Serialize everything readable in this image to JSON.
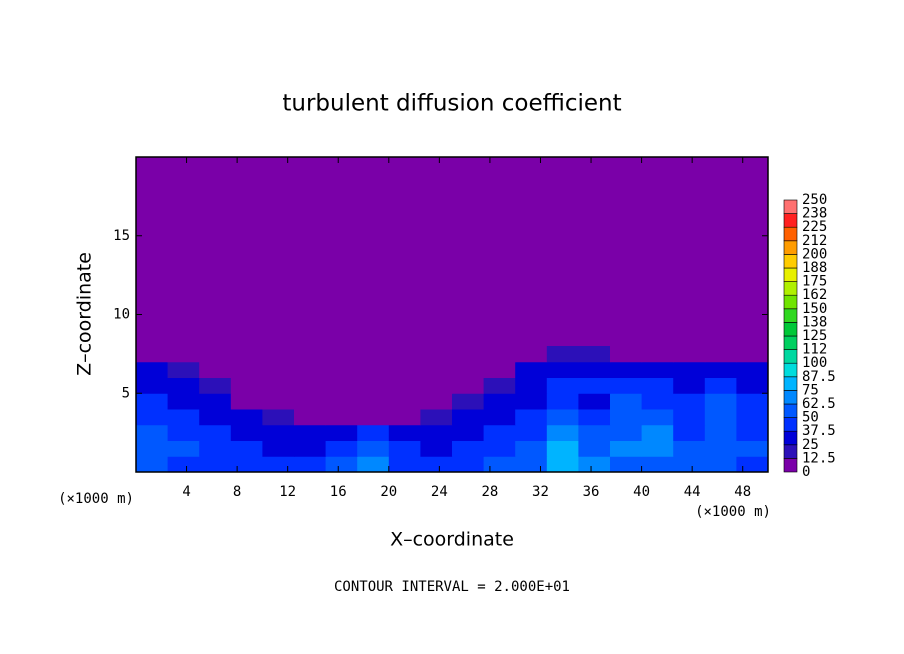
{
  "chart_data": {
    "type": "heatmap",
    "title": "turbulent diffusion coefficient",
    "xlabel": "X–coordinate",
    "ylabel": "Z–coordinate",
    "x_units": [
      "(×1000 m)",
      "(×1000 m)"
    ],
    "footer": "CONTOUR INTERVAL = 2.000E+01",
    "xlim": [
      0,
      50
    ],
    "ylim": [
      0,
      20
    ],
    "xticks": [
      4,
      8,
      12,
      16,
      20,
      24,
      28,
      32,
      36,
      40,
      44,
      48
    ],
    "yticks": [
      5,
      10,
      15
    ],
    "x": [
      1.25,
      3.75,
      6.25,
      8.75,
      11.25,
      13.75,
      16.25,
      18.75,
      21.25,
      23.75,
      26.25,
      28.75,
      31.25,
      33.75,
      36.25,
      38.75,
      41.25,
      43.75,
      46.25,
      48.75
    ],
    "y": [
      0.5,
      1.5,
      2.5,
      3.5,
      4.5,
      5.5,
      6.5,
      7.5
    ],
    "values": [
      [
        50,
        45,
        40,
        40,
        40,
        45,
        50,
        70,
        45,
        40,
        45,
        50,
        55,
        80,
        70,
        60,
        55,
        50,
        50,
        45
      ],
      [
        55,
        50,
        45,
        40,
        35,
        35,
        45,
        60,
        40,
        35,
        40,
        45,
        50,
        75,
        60,
        70,
        65,
        50,
        55,
        50
      ],
      [
        50,
        45,
        40,
        35,
        30,
        25,
        30,
        40,
        35,
        30,
        35,
        40,
        40,
        70,
        50,
        60,
        70,
        45,
        60,
        45
      ],
      [
        45,
        40,
        35,
        30,
        15,
        10,
        12,
        10,
        10,
        15,
        25,
        30,
        45,
        55,
        40,
        55,
        60,
        45,
        55,
        45
      ],
      [
        40,
        35,
        25,
        10,
        0,
        0,
        0,
        0,
        0,
        0,
        15,
        30,
        35,
        40,
        35,
        50,
        45,
        40,
        50,
        40
      ],
      [
        35,
        30,
        15,
        0,
        0,
        0,
        0,
        0,
        0,
        0,
        0,
        15,
        30,
        45,
        40,
        40,
        45,
        35,
        40,
        35
      ],
      [
        30,
        20,
        0,
        0,
        0,
        0,
        0,
        0,
        0,
        0,
        0,
        0,
        25,
        30,
        25,
        35,
        30,
        25,
        30,
        25
      ],
      [
        0,
        0,
        0,
        0,
        0,
        0,
        0,
        0,
        0,
        0,
        0,
        0,
        0,
        15,
        20,
        0,
        0,
        0,
        0,
        0
      ]
    ],
    "levels": [
      0,
      12.5,
      25,
      37.5,
      50,
      62.5,
      75,
      87.5,
      100,
      {
        "value": 112.5,
        "label": "112"
      },
      125,
      {
        "value": 137.5,
        "label": "138"
      },
      150,
      {
        "value": 162.5,
        "label": "162"
      },
      175,
      {
        "value": 187.5,
        "label": "188"
      },
      200,
      {
        "value": 212.5,
        "label": "212"
      },
      225,
      {
        "value": 237.5,
        "label": "238"
      },
      250
    ],
    "colors": [
      "#7a00a8",
      "#2c10b8",
      "#0000d8",
      "#0030ff",
      "#0058ff",
      "#0088ff",
      "#00b4ff",
      "#00dcdc",
      "#00d8a0",
      "#00d060",
      "#00c838",
      "#30d820",
      "#70e400",
      "#b0f000",
      "#e8f000",
      "#ffcc00",
      "#ff9c00",
      "#ff6000",
      "#ff2020",
      "#ff7070"
    ]
  }
}
